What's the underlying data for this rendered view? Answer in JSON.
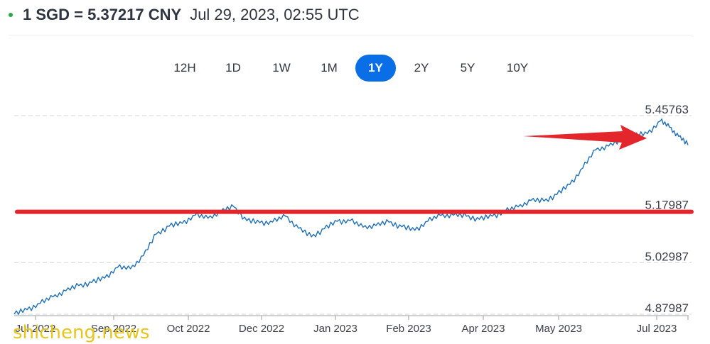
{
  "header": {
    "rate_text": "1 SGD = 5.37217 CNY",
    "timestamp": "Jul 29, 2023, 02:55 UTC",
    "live_color": "#2aa84a"
  },
  "ranges": {
    "items": [
      "12H",
      "1D",
      "1W",
      "1M",
      "1Y",
      "2Y",
      "5Y",
      "10Y"
    ],
    "selected": "1Y",
    "active_color": "#0a6ee6"
  },
  "chart_data": {
    "type": "line",
    "title": "",
    "xlabel": "",
    "ylabel": "",
    "x_ticks": [
      "Jul 2022",
      "Sep 2022",
      "Oct 2022",
      "Dec 2022",
      "Jan 2023",
      "Feb 2023",
      "Apr 2023",
      "May 2023",
      "Jul 2023"
    ],
    "y_ticks": [
      5.45763,
      5.17987,
      5.02987,
      4.87987
    ],
    "ylim": [
      4.87987,
      5.45763
    ],
    "grid": "horizontal dashed",
    "series": [
      {
        "color": "#1f6fb7",
        "points": [
          [
            "Jul 29, 2022",
            4.88
          ],
          [
            "Aug 5, 2022",
            4.893
          ],
          [
            "Aug 12, 2022",
            4.911
          ],
          [
            "Aug 19, 2022",
            4.93
          ],
          [
            "Aug 26, 2022",
            4.948
          ],
          [
            "Sep 2, 2022",
            4.963
          ],
          [
            "Sep 9, 2022",
            4.972
          ],
          [
            "Sep 16, 2022",
            4.985
          ],
          [
            "Sep 23, 2022",
            5.016
          ],
          [
            "Sep 30, 2022",
            5.012
          ],
          [
            "Oct 7, 2022",
            5.05
          ],
          [
            "Oct 14, 2022",
            5.113
          ],
          [
            "Oct 21, 2022",
            5.136
          ],
          [
            "Oct 28, 2022",
            5.144
          ],
          [
            "Nov 4, 2022",
            5.168
          ],
          [
            "Nov 11, 2022",
            5.159
          ],
          [
            "Nov 18, 2022",
            5.179
          ],
          [
            "Nov 25, 2022",
            5.192
          ],
          [
            "Dec 2, 2022",
            5.152
          ],
          [
            "Dec 9, 2022",
            5.146
          ],
          [
            "Dec 16, 2022",
            5.148
          ],
          [
            "Dec 23, 2022",
            5.165
          ],
          [
            "Dec 30, 2022",
            5.13
          ],
          [
            "Jan 6, 2023",
            5.105
          ],
          [
            "Jan 13, 2023",
            5.128
          ],
          [
            "Jan 20, 2023",
            5.15
          ],
          [
            "Jan 27, 2023",
            5.152
          ],
          [
            "Feb 3, 2023",
            5.133
          ],
          [
            "Feb 10, 2023",
            5.138
          ],
          [
            "Feb 17, 2023",
            5.148
          ],
          [
            "Feb 24, 2023",
            5.134
          ],
          [
            "Mar 3, 2023",
            5.124
          ],
          [
            "Mar 10, 2023",
            5.15
          ],
          [
            "Mar 17, 2023",
            5.167
          ],
          [
            "Mar 24, 2023",
            5.168
          ],
          [
            "Mar 31, 2023",
            5.165
          ],
          [
            "Apr 7, 2023",
            5.156
          ],
          [
            "Apr 14, 2023",
            5.165
          ],
          [
            "Apr 21, 2023",
            5.179
          ],
          [
            "Apr 28, 2023",
            5.192
          ],
          [
            "May 5, 2023",
            5.211
          ],
          [
            "May 12, 2023",
            5.209
          ],
          [
            "May 19, 2023",
            5.228
          ],
          [
            "May 26, 2023",
            5.257
          ],
          [
            "Jun 2, 2023",
            5.305
          ],
          [
            "Jun 9, 2023",
            5.358
          ],
          [
            "Jun 16, 2023",
            5.369
          ],
          [
            "Jun 23, 2023",
            5.385
          ],
          [
            "Jun 30, 2023",
            5.399
          ],
          [
            "Jul 7, 2023",
            5.405
          ],
          [
            "Jul 14, 2023",
            5.442
          ],
          [
            "Jul 19, 2023",
            5.424
          ],
          [
            "Jul 24, 2023",
            5.397
          ],
          [
            "Jul 29, 2023",
            5.372
          ]
        ]
      }
    ]
  },
  "annotations": {
    "highlight_color": "#e3262c",
    "watermark_text": "shicheng.news",
    "watermark_color": "#e6c51d"
  }
}
